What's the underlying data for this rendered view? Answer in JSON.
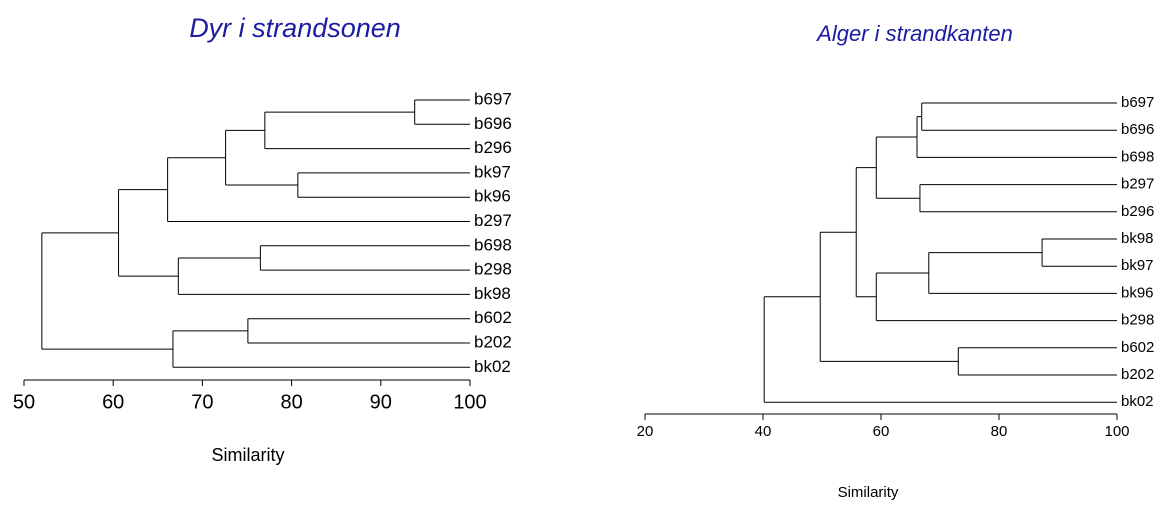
{
  "chart_data": [
    {
      "type": "dendrogram",
      "title": "Dyr i strandsonen",
      "xlabel": "Similarity",
      "xlim": [
        50,
        100
      ],
      "xticks": [
        50,
        60,
        70,
        80,
        90,
        100
      ],
      "tree": {
        "value": 52.0,
        "children": [
          {
            "value": 60.6,
            "children": [
              {
                "value": 66.1,
                "children": [
                  {
                    "value": 72.6,
                    "children": [
                      {
                        "value": 77.0,
                        "children": [
                          {
                            "value": 93.8,
                            "children": [
                              "b697",
                              "b696"
                            ]
                          },
                          "b296"
                        ]
                      },
                      {
                        "value": 80.7,
                        "children": [
                          "bk97",
                          "bk96"
                        ]
                      }
                    ]
                  },
                  "b297"
                ]
              },
              {
                "value": 67.3,
                "children": [
                  {
                    "value": 76.5,
                    "children": [
                      "b698",
                      "b298"
                    ]
                  },
                  "bk98"
                ]
              }
            ]
          },
          {
            "value": 66.7,
            "children": [
              {
                "value": 75.1,
                "children": [
                  "b602",
                  "b202"
                ]
              },
              "bk02"
            ]
          }
        ]
      }
    },
    {
      "type": "dendrogram",
      "title": "Alger i strandkanten",
      "xlabel": "Similarity",
      "xlim": [
        20,
        100
      ],
      "xticks": [
        20,
        40,
        60,
        80,
        100
      ],
      "tree": {
        "value": 40.2,
        "children": [
          {
            "value": 49.7,
            "children": [
              {
                "value": 55.8,
                "children": [
                  {
                    "value": 59.2,
                    "children": [
                      {
                        "value": 66.1,
                        "children": [
                          {
                            "value": 66.9,
                            "children": [
                              "b697",
                              "b696"
                            ]
                          },
                          "b698"
                        ]
                      },
                      {
                        "value": 66.6,
                        "children": [
                          "b297",
                          "b296"
                        ]
                      }
                    ]
                  },
                  {
                    "value": 59.2,
                    "children": [
                      {
                        "value": 68.1,
                        "children": [
                          {
                            "value": 87.3,
                            "children": [
                              "bk98",
                              "bk97"
                            ]
                          },
                          "bk96"
                        ]
                      },
                      "b298"
                    ]
                  }
                ]
              },
              {
                "value": 73.1,
                "children": [
                  "b602",
                  "b202"
                ]
              }
            ]
          },
          "bk02"
        ]
      }
    }
  ]
}
